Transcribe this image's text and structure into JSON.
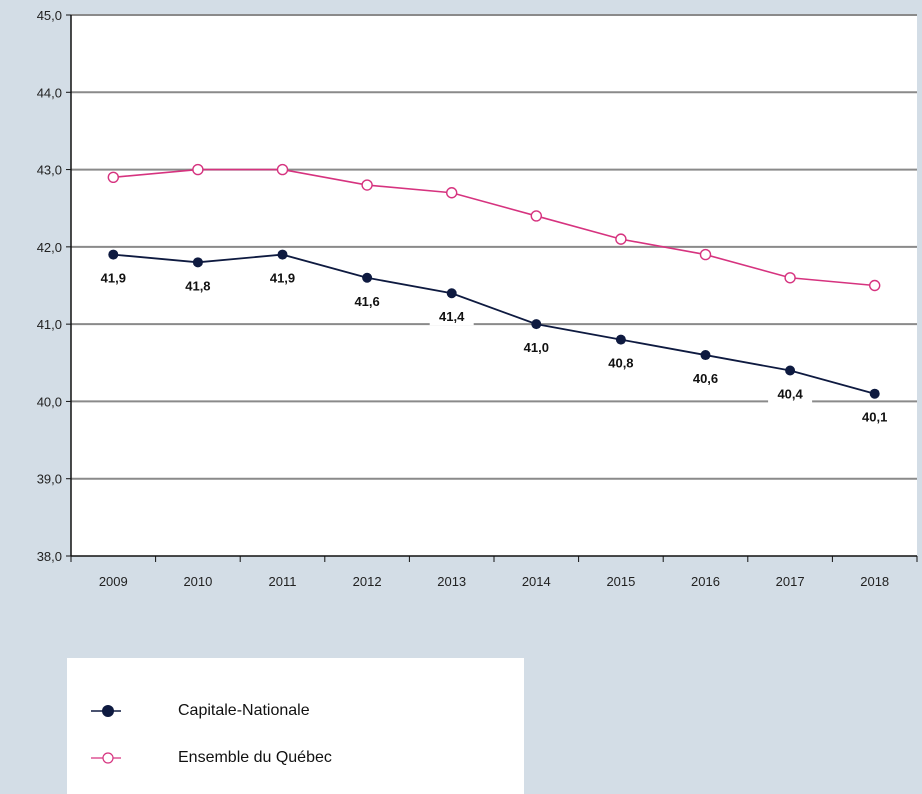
{
  "chart_data": {
    "type": "line",
    "title": "",
    "xlabel": "",
    "ylabel": "",
    "categories": [
      "2009",
      "2010",
      "2011",
      "2012",
      "2013",
      "2014",
      "2015",
      "2016",
      "2017",
      "2018"
    ],
    "ylim": [
      38.0,
      45.0
    ],
    "yticks": [
      "38,0",
      "39,0",
      "40,0",
      "41,0",
      "42,0",
      "43,0",
      "44,0",
      "45,0"
    ],
    "grid": true,
    "legend_position": "bottom-left",
    "series": [
      {
        "name": "Capitale-Nationale",
        "color": "#0e1a40",
        "marker": "filled-circle",
        "values": [
          41.9,
          41.8,
          41.9,
          41.6,
          41.4,
          41.0,
          40.8,
          40.6,
          40.4,
          40.1
        ],
        "labels": [
          "41,9",
          "41,8",
          "41,9",
          "41,6",
          "41,4",
          "41,0",
          "40,8",
          "40,6",
          "40,4",
          "40,1"
        ]
      },
      {
        "name": "Ensemble du Québec",
        "color": "#d6337f",
        "marker": "hollow-circle",
        "values": [
          42.9,
          43.0,
          43.0,
          42.8,
          42.7,
          42.4,
          42.1,
          41.9,
          41.6,
          41.5
        ]
      }
    ]
  }
}
